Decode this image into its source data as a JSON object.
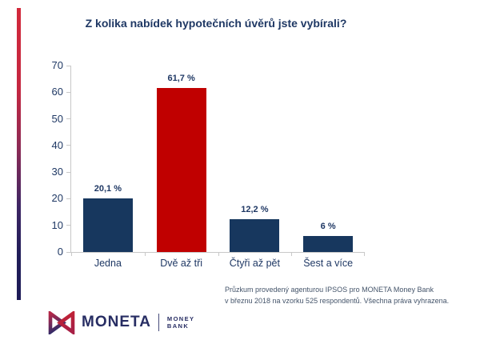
{
  "slide": {
    "title": "Z kolika nabídek hypotečních úvěrů jste vybírali?",
    "footnote_line1": "Průzkum provedený agenturou IPSOS pro MONETA Money Bank",
    "footnote_line2": "v březnu 2018 na vzorku 525 respondentů. Všechna práva vyhrazena."
  },
  "chart_data": {
    "type": "bar",
    "title": "Z kolika nabídek hypotečních úvěrů jste vybírali?",
    "categories": [
      "Jedna",
      "Dvě až tři",
      "Čtyři až pět",
      "Šest a více"
    ],
    "values": [
      20.1,
      61.7,
      12.2,
      6
    ],
    "value_labels": [
      "20,1 %",
      "61,7 %",
      "12,2 %",
      "6 %"
    ],
    "bar_colors": [
      "#17375e",
      "#c00000",
      "#17375e",
      "#17375e"
    ],
    "xlabel": "",
    "ylabel": "",
    "ylim": [
      0,
      70
    ],
    "yticks": [
      0,
      10,
      20,
      30,
      40,
      50,
      60,
      70
    ],
    "grid": false,
    "legend": "none"
  },
  "logo": {
    "brand": "MONETA",
    "suffix_line1": "MONEY",
    "suffix_line2": "BANK"
  },
  "colors": {
    "title_navy": "#1f3864",
    "bar_navy": "#17375e",
    "bar_red": "#c00000",
    "axis_gray": "#c8c8c8",
    "footnote_gray_blue": "#44546a",
    "logo_navy": "#272d63",
    "stripe_top_red": "#d2293b",
    "stripe_bottom_navy": "#1e1b57"
  }
}
